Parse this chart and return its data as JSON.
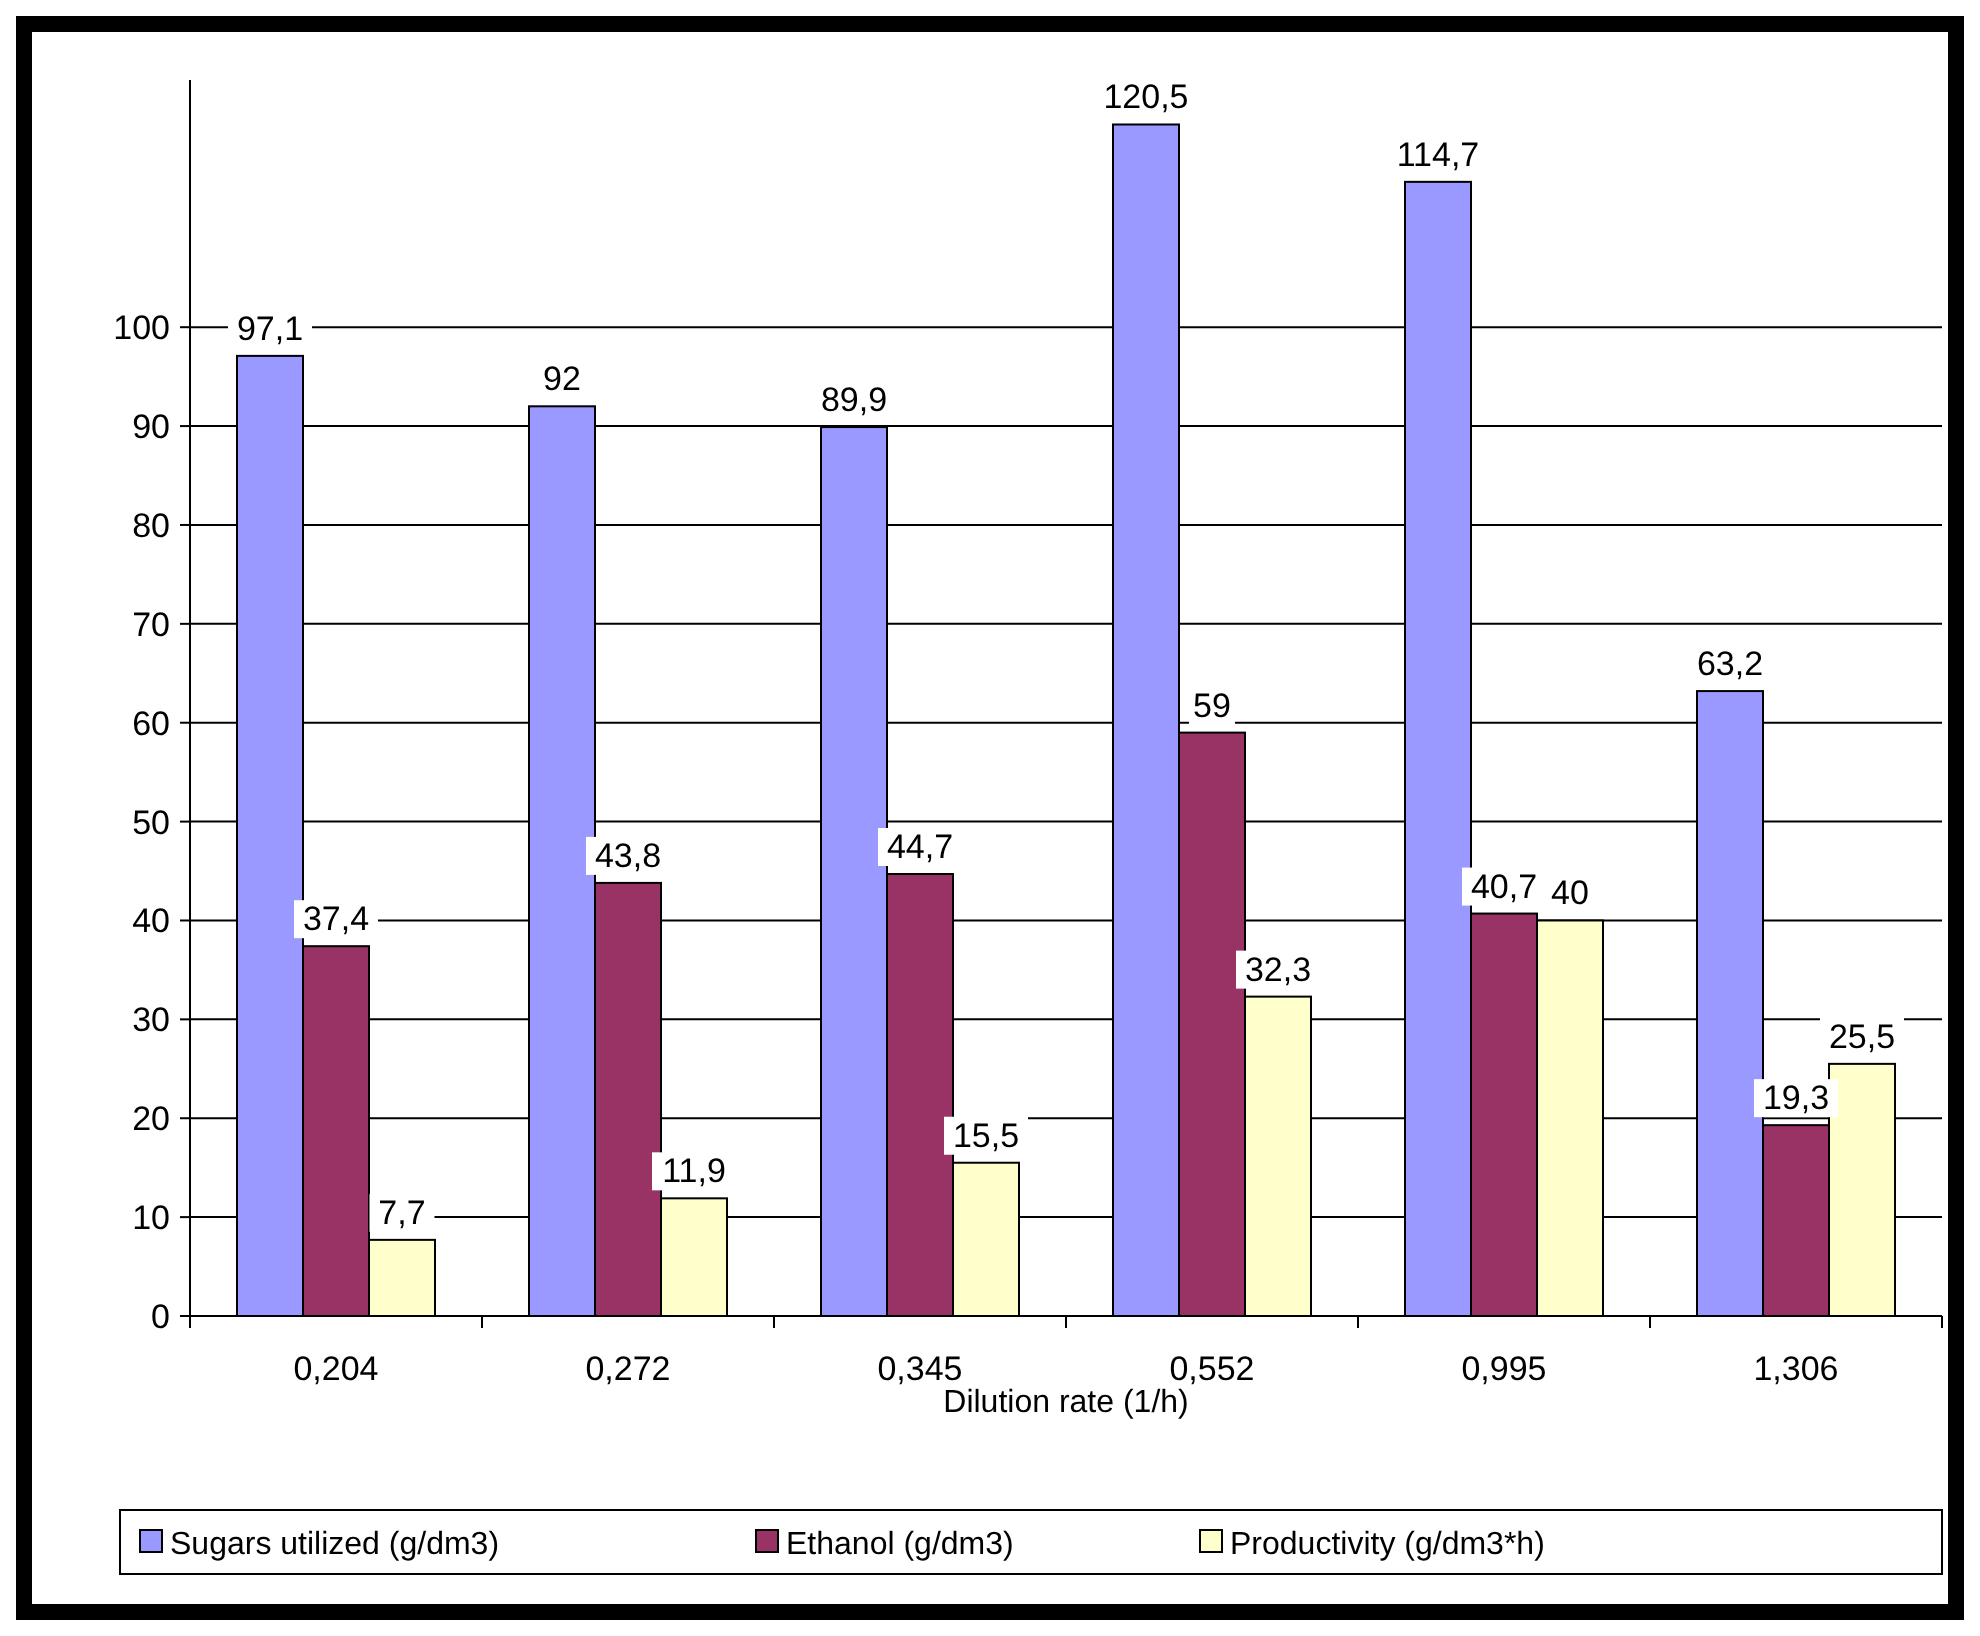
{
  "chart_data": {
    "type": "bar",
    "xlabel": "Dilution rate (1/h)",
    "categories": [
      "0,204",
      "0,272",
      "0,345",
      "0,552",
      "0,995",
      "1,306"
    ],
    "series": [
      {
        "name": "Sugars utilized (g/dm3)",
        "color": "#9999ff",
        "values": [
          97.1,
          92,
          89.9,
          120.5,
          114.7,
          63.2
        ],
        "value_labels": [
          "97,1",
          "92",
          "89,9",
          "120,5",
          "114,7",
          "63,2"
        ]
      },
      {
        "name": "Ethanol (g/dm3)",
        "color": "#993366",
        "values": [
          37.4,
          43.8,
          44.7,
          59,
          40.7,
          19.3
        ],
        "value_labels": [
          "37,4",
          "43,8",
          "44,7",
          "59",
          "40,7",
          "19,3"
        ]
      },
      {
        "name": "Productivity (g/dm3*h)",
        "color": "#ffffcc",
        "values": [
          7.7,
          11.9,
          15.5,
          32.3,
          40,
          25.5
        ],
        "value_labels": [
          "7,7",
          "11,9",
          "15,5",
          "32,3",
          "40",
          "25,5"
        ]
      }
    ],
    "ylim": [
      0,
      125
    ],
    "yticks": [
      0,
      10,
      20,
      30,
      40,
      50,
      60,
      70,
      80,
      90,
      100
    ],
    "grid": "y",
    "legend": "bottom"
  }
}
